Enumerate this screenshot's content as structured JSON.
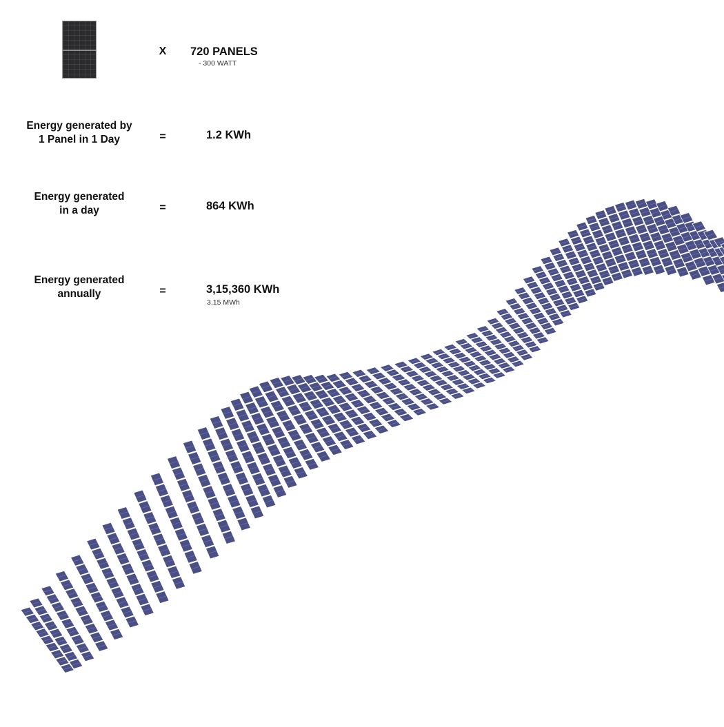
{
  "panel": {
    "multiplier": "X",
    "count_label": "720 PANELS",
    "wattage_label": "- 300 WATT"
  },
  "rows": [
    {
      "label_line1": "Energy generated by",
      "label_line2": "1 Panel in 1 Day",
      "operator": "=",
      "value": "1.2 KWh",
      "sub": ""
    },
    {
      "label_line1": "Energy generated",
      "label_line2": "in a day",
      "operator": "=",
      "value": "864 KWh",
      "sub": ""
    },
    {
      "label_line1": "Energy generated",
      "label_line2": "annually",
      "operator": "=",
      "value": "3,15,360 KWh",
      "sub": "3,15 MWh"
    }
  ],
  "colors": {
    "panel_fill": "#4a4f86",
    "panel_grid": "#7c82b4",
    "panel_edge": "#ffffff",
    "icon_fill": "#2b2b2d"
  }
}
